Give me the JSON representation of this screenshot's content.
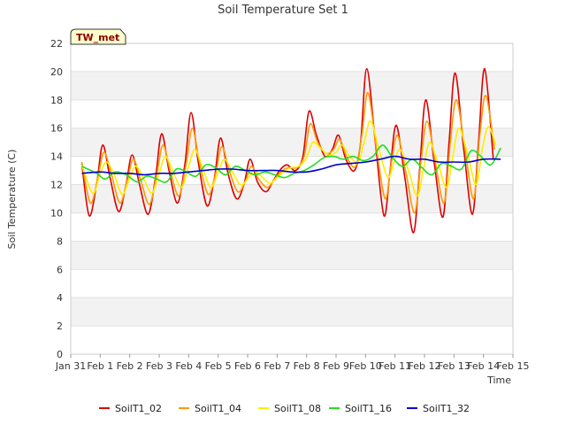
{
  "chart_data": {
    "type": "line",
    "title": "Soil Temperature Set 1",
    "xlabel": "Time",
    "ylabel": "Soil Temperature (C)",
    "ylim": [
      0,
      22
    ],
    "xlim": [
      "Jan 31",
      "Feb 15"
    ],
    "x_ticks": [
      "Jan 31",
      "Feb 1",
      "Feb 2",
      "Feb 3",
      "Feb 4",
      "Feb 5",
      "Feb 6",
      "Feb 7",
      "Feb 8",
      "Feb 9",
      "Feb 10",
      "Feb 11",
      "Feb 12",
      "Feb 13",
      "Feb 14",
      "Feb 15"
    ],
    "y_ticks": [
      0,
      2,
      4,
      6,
      8,
      10,
      12,
      14,
      16,
      18,
      20,
      22
    ],
    "grid": "horizontal alternating bands",
    "legend_position": "bottom",
    "station_tag": "TW_met",
    "series": [
      {
        "name": "SoilT1_02",
        "color": "#dd0000",
        "points": [
          [
            "Jan 31 09:00",
            13.5
          ],
          [
            "Jan 31 15:00",
            9.8
          ],
          [
            "Jan 31 21:00",
            12.0
          ],
          [
            "Feb 1 02:00",
            14.8
          ],
          [
            "Feb 1 08:00",
            12.5
          ],
          [
            "Feb 1 15:00",
            10.1
          ],
          [
            "Feb 1 21:00",
            12.0
          ],
          [
            "Feb 2 02:00",
            14.1
          ],
          [
            "Feb 2 08:00",
            12.0
          ],
          [
            "Feb 2 15:00",
            9.9
          ],
          [
            "Feb 2 21:00",
            12.5
          ],
          [
            "Feb 3 02:00",
            15.6
          ],
          [
            "Feb 3 08:00",
            13.0
          ],
          [
            "Feb 3 15:00",
            10.7
          ],
          [
            "Feb 3 21:00",
            13.5
          ],
          [
            "Feb 4 02:00",
            17.1
          ],
          [
            "Feb 4 08:00",
            13.5
          ],
          [
            "Feb 4 15:00",
            10.5
          ],
          [
            "Feb 4 21:00",
            12.5
          ],
          [
            "Feb 5 02:00",
            15.3
          ],
          [
            "Feb 5 08:00",
            12.8
          ],
          [
            "Feb 5 15:00",
            11.0
          ],
          [
            "Feb 5 21:00",
            12.0
          ],
          [
            "Feb 6 02:00",
            13.8
          ],
          [
            "Feb 6 08:00",
            12.2
          ],
          [
            "Feb 6 15:00",
            11.5
          ],
          [
            "Feb 6 21:00",
            12.3
          ],
          [
            "Feb 7 02:00",
            13.0
          ],
          [
            "Feb 7 08:00",
            13.4
          ],
          [
            "Feb 7 15:00",
            13.0
          ],
          [
            "Feb 7 21:00",
            14.0
          ],
          [
            "Feb 8 02:00",
            17.2
          ],
          [
            "Feb 8 08:00",
            15.5
          ],
          [
            "Feb 8 15:00",
            14.0
          ],
          [
            "Feb 8 21:00",
            14.5
          ],
          [
            "Feb 9 02:00",
            15.5
          ],
          [
            "Feb 9 08:00",
            13.8
          ],
          [
            "Feb 9 15:00",
            13.0
          ],
          [
            "Feb 9 20:00",
            15.0
          ],
          [
            "Feb 10 01:00",
            20.2
          ],
          [
            "Feb 10 08:00",
            15.0
          ],
          [
            "Feb 10 15:00",
            9.8
          ],
          [
            "Feb 10 20:00",
            13.0
          ],
          [
            "Feb 11 01:00",
            16.2
          ],
          [
            "Feb 11 08:00",
            12.5
          ],
          [
            "Feb 11 15:00",
            8.6
          ],
          [
            "Feb 11 20:00",
            13.0
          ],
          [
            "Feb 12 01:00",
            18.0
          ],
          [
            "Feb 12 08:00",
            13.5
          ],
          [
            "Feb 12 15:00",
            9.7
          ],
          [
            "Feb 12 20:00",
            15.0
          ],
          [
            "Feb 13 01:00",
            19.9
          ],
          [
            "Feb 13 08:00",
            14.5
          ],
          [
            "Feb 13 15:00",
            9.9
          ],
          [
            "Feb 13 20:00",
            15.0
          ],
          [
            "Feb 14 01:00",
            20.2
          ],
          [
            "Feb 14 08:00",
            13.8
          ]
        ]
      },
      {
        "name": "SoilT1_04",
        "color": "#ff9900",
        "points": [
          [
            "Jan 31 09:00",
            13.6
          ],
          [
            "Jan 31 16:00",
            10.7
          ],
          [
            "Jan 31 22:00",
            12.5
          ],
          [
            "Feb 1 03:00",
            14.3
          ],
          [
            "Feb 1 09:00",
            12.8
          ],
          [
            "Feb 1 16:00",
            10.7
          ],
          [
            "Feb 1 22:00",
            12.3
          ],
          [
            "Feb 2 03:00",
            13.8
          ],
          [
            "Feb 2 09:00",
            12.3
          ],
          [
            "Feb 2 16:00",
            10.6
          ],
          [
            "Feb 2 22:00",
            12.7
          ],
          [
            "Feb 3 03:00",
            14.8
          ],
          [
            "Feb 3 09:00",
            13.0
          ],
          [
            "Feb 3 16:00",
            11.2
          ],
          [
            "Feb 3 22:00",
            13.5
          ],
          [
            "Feb 4 03:00",
            16.0
          ],
          [
            "Feb 4 09:00",
            13.5
          ],
          [
            "Feb 4 16:00",
            11.3
          ],
          [
            "Feb 4 22:00",
            12.8
          ],
          [
            "Feb 5 03:00",
            14.7
          ],
          [
            "Feb 5 09:00",
            13.0
          ],
          [
            "Feb 5 16:00",
            11.5
          ],
          [
            "Feb 5 22:00",
            12.2
          ],
          [
            "Feb 6 03:00",
            13.3
          ],
          [
            "Feb 6 09:00",
            12.4
          ],
          [
            "Feb 6 16:00",
            11.8
          ],
          [
            "Feb 6 22:00",
            12.4
          ],
          [
            "Feb 7 03:00",
            12.9
          ],
          [
            "Feb 7 09:00",
            13.2
          ],
          [
            "Feb 7 16:00",
            13.2
          ],
          [
            "Feb 7 22:00",
            14.0
          ],
          [
            "Feb 8 03:00",
            16.3
          ],
          [
            "Feb 8 09:00",
            15.0
          ],
          [
            "Feb 8 16:00",
            14.2
          ],
          [
            "Feb 8 22:00",
            14.5
          ],
          [
            "Feb 9 03:00",
            15.2
          ],
          [
            "Feb 9 09:00",
            13.9
          ],
          [
            "Feb 9 16:00",
            13.3
          ],
          [
            "Feb 9 21:00",
            15.5
          ],
          [
            "Feb 10 02:00",
            18.5
          ],
          [
            "Feb 10 09:00",
            14.5
          ],
          [
            "Feb 10 16:00",
            11.0
          ],
          [
            "Feb 10 21:00",
            13.5
          ],
          [
            "Feb 11 02:00",
            15.5
          ],
          [
            "Feb 11 09:00",
            12.8
          ],
          [
            "Feb 11 16:00",
            10.0
          ],
          [
            "Feb 11 21:00",
            13.5
          ],
          [
            "Feb 12 02:00",
            16.5
          ],
          [
            "Feb 12 09:00",
            13.5
          ],
          [
            "Feb 12 16:00",
            10.7
          ],
          [
            "Feb 12 21:00",
            15.0
          ],
          [
            "Feb 13 02:00",
            18.0
          ],
          [
            "Feb 13 09:00",
            14.5
          ],
          [
            "Feb 13 16:00",
            11.0
          ],
          [
            "Feb 13 21:00",
            15.5
          ],
          [
            "Feb 14 02:00",
            18.3
          ],
          [
            "Feb 14 09:00",
            14.5
          ]
        ]
      },
      {
        "name": "SoilT1_08",
        "color": "#ffee00",
        "points": [
          [
            "Jan 31 09:00",
            13.4
          ],
          [
            "Jan 31 18:00",
            11.4
          ],
          [
            "Feb 1 00:00",
            12.8
          ],
          [
            "Feb 1 05:00",
            13.6
          ],
          [
            "Feb 1 11:00",
            12.8
          ],
          [
            "Feb 1 18:00",
            11.3
          ],
          [
            "Feb 2 00:00",
            12.5
          ],
          [
            "Feb 2 05:00",
            13.3
          ],
          [
            "Feb 2 11:00",
            12.5
          ],
          [
            "Feb 2 18:00",
            11.4
          ],
          [
            "Feb 3 00:00",
            12.8
          ],
          [
            "Feb 3 05:00",
            14.0
          ],
          [
            "Feb 3 11:00",
            13.0
          ],
          [
            "Feb 3 18:00",
            11.8
          ],
          [
            "Feb 4 00:00",
            13.3
          ],
          [
            "Feb 4 05:00",
            14.5
          ],
          [
            "Feb 4 11:00",
            13.3
          ],
          [
            "Feb 4 18:00",
            11.8
          ],
          [
            "Feb 5 00:00",
            12.9
          ],
          [
            "Feb 5 05:00",
            13.8
          ],
          [
            "Feb 5 11:00",
            13.0
          ],
          [
            "Feb 5 18:00",
            12.0
          ],
          [
            "Feb 6 00:00",
            12.4
          ],
          [
            "Feb 6 05:00",
            13.0
          ],
          [
            "Feb 6 11:00",
            12.6
          ],
          [
            "Feb 6 18:00",
            12.1
          ],
          [
            "Feb 7 00:00",
            12.5
          ],
          [
            "Feb 7 05:00",
            12.9
          ],
          [
            "Feb 7 11:00",
            13.2
          ],
          [
            "Feb 7 18:00",
            13.3
          ],
          [
            "Feb 8 00:00",
            13.9
          ],
          [
            "Feb 8 05:00",
            15.0
          ],
          [
            "Feb 8 11:00",
            14.6
          ],
          [
            "Feb 8 18:00",
            14.1
          ],
          [
            "Feb 9 00:00",
            14.3
          ],
          [
            "Feb 9 05:00",
            14.8
          ],
          [
            "Feb 9 11:00",
            14.0
          ],
          [
            "Feb 9 18:00",
            13.6
          ],
          [
            "Feb 9 23:00",
            15.0
          ],
          [
            "Feb 10 04:00",
            16.5
          ],
          [
            "Feb 10 11:00",
            14.5
          ],
          [
            "Feb 10 18:00",
            12.5
          ],
          [
            "Feb 10 23:00",
            13.5
          ],
          [
            "Feb 11 04:00",
            14.5
          ],
          [
            "Feb 11 11:00",
            13.0
          ],
          [
            "Feb 11 18:00",
            11.2
          ],
          [
            "Feb 11 23:00",
            13.0
          ],
          [
            "Feb 12 04:00",
            15.0
          ],
          [
            "Feb 12 11:00",
            13.5
          ],
          [
            "Feb 12 18:00",
            11.8
          ],
          [
            "Feb 12 23:00",
            14.0
          ],
          [
            "Feb 13 04:00",
            16.0
          ],
          [
            "Feb 13 11:00",
            14.2
          ],
          [
            "Feb 13 18:00",
            12.0
          ],
          [
            "Feb 13 23:00",
            14.5
          ],
          [
            "Feb 14 04:00",
            16.1
          ],
          [
            "Feb 14 10:00",
            14.8
          ]
        ]
      },
      {
        "name": "SoilT1_16",
        "color": "#22dd22",
        "points": [
          [
            "Jan 31 09:00",
            13.3
          ],
          [
            "Jan 31 21:00",
            12.8
          ],
          [
            "Feb 1 04:00",
            12.4
          ],
          [
            "Feb 1 12:00",
            12.9
          ],
          [
            "Feb 1 21:00",
            12.7
          ],
          [
            "Feb 2 06:00",
            12.2
          ],
          [
            "Feb 2 14:00",
            12.6
          ],
          [
            "Feb 2 22:00",
            12.4
          ],
          [
            "Feb 3 06:00",
            12.2
          ],
          [
            "Feb 3 14:00",
            13.1
          ],
          [
            "Feb 3 22:00",
            12.9
          ],
          [
            "Feb 4 06:00",
            12.6
          ],
          [
            "Feb 4 14:00",
            13.4
          ],
          [
            "Feb 4 22:00",
            13.2
          ],
          [
            "Feb 5 06:00",
            12.7
          ],
          [
            "Feb 5 14:00",
            13.3
          ],
          [
            "Feb 5 22:00",
            13.0
          ],
          [
            "Feb 6 06:00",
            12.7
          ],
          [
            "Feb 6 14:00",
            12.9
          ],
          [
            "Feb 6 22:00",
            12.7
          ],
          [
            "Feb 7 06:00",
            12.5
          ],
          [
            "Feb 7 14:00",
            12.8
          ],
          [
            "Feb 7 22:00",
            13.0
          ],
          [
            "Feb 8 06:00",
            13.4
          ],
          [
            "Feb 8 14:00",
            13.9
          ],
          [
            "Feb 8 22:00",
            14.0
          ],
          [
            "Feb 9 06:00",
            13.8
          ],
          [
            "Feb 9 14:00",
            14.0
          ],
          [
            "Feb 9 22:00",
            13.7
          ],
          [
            "Feb 10 06:00",
            14.0
          ],
          [
            "Feb 10 14:00",
            14.8
          ],
          [
            "Feb 10 22:00",
            13.9
          ],
          [
            "Feb 11 06:00",
            13.3
          ],
          [
            "Feb 11 14:00",
            13.8
          ],
          [
            "Feb 11 22:00",
            13.2
          ],
          [
            "Feb 12 06:00",
            12.7
          ],
          [
            "Feb 12 14:00",
            13.5
          ],
          [
            "Feb 12 22:00",
            13.3
          ],
          [
            "Feb 13 06:00",
            13.1
          ],
          [
            "Feb 13 14:00",
            14.4
          ],
          [
            "Feb 13 22:00",
            14.0
          ],
          [
            "Feb 14 06:00",
            13.4
          ],
          [
            "Feb 14 14:00",
            14.6
          ]
        ]
      },
      {
        "name": "SoilT1_32",
        "color": "#0000cc",
        "points": [
          [
            "Jan 31 09:00",
            12.8
          ],
          [
            "Feb 1 00:00",
            12.9
          ],
          [
            "Feb 1 12:00",
            12.8
          ],
          [
            "Feb 2 00:00",
            12.8
          ],
          [
            "Feb 2 12:00",
            12.7
          ],
          [
            "Feb 3 00:00",
            12.8
          ],
          [
            "Feb 3 12:00",
            12.8
          ],
          [
            "Feb 4 00:00",
            12.9
          ],
          [
            "Feb 4 12:00",
            13.0
          ],
          [
            "Feb 5 00:00",
            13.1
          ],
          [
            "Feb 5 12:00",
            13.1
          ],
          [
            "Feb 6 00:00",
            13.0
          ],
          [
            "Feb 6 12:00",
            13.0
          ],
          [
            "Feb 7 00:00",
            13.0
          ],
          [
            "Feb 7 12:00",
            12.9
          ],
          [
            "Feb 8 00:00",
            12.9
          ],
          [
            "Feb 8 12:00",
            13.1
          ],
          [
            "Feb 9 00:00",
            13.4
          ],
          [
            "Feb 9 12:00",
            13.5
          ],
          [
            "Feb 10 00:00",
            13.6
          ],
          [
            "Feb 10 12:00",
            13.8
          ],
          [
            "Feb 11 00:00",
            14.0
          ],
          [
            "Feb 11 12:00",
            13.8
          ],
          [
            "Feb 12 00:00",
            13.8
          ],
          [
            "Feb 12 12:00",
            13.6
          ],
          [
            "Feb 13 00:00",
            13.6
          ],
          [
            "Feb 13 12:00",
            13.6
          ],
          [
            "Feb 14 00:00",
            13.8
          ],
          [
            "Feb 14 14:00",
            13.8
          ]
        ]
      }
    ]
  }
}
